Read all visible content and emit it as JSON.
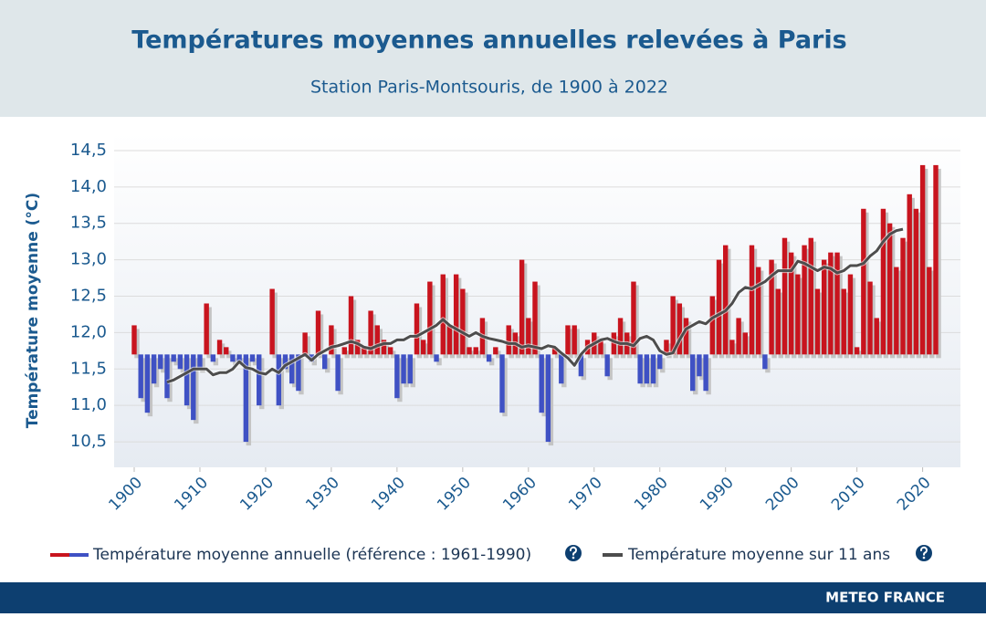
{
  "chart_data": {
    "type": "bar",
    "title": "Températures moyennes annuelles relevées à Paris",
    "subtitle": "Station Paris-Montsouris, de 1900 à 2022",
    "y_label": "Température moyenne (°C)",
    "source": "METEO FRANCE",
    "baseline": 11.7,
    "x": [
      1900,
      1901,
      1902,
      1903,
      1904,
      1905,
      1906,
      1907,
      1908,
      1909,
      1910,
      1911,
      1912,
      1913,
      1914,
      1915,
      1916,
      1917,
      1918,
      1919,
      1920,
      1921,
      1922,
      1923,
      1924,
      1925,
      1926,
      1927,
      1928,
      1929,
      1930,
      1931,
      1932,
      1933,
      1934,
      1935,
      1936,
      1937,
      1938,
      1939,
      1940,
      1941,
      1942,
      1943,
      1944,
      1945,
      1946,
      1947,
      1948,
      1949,
      1950,
      1951,
      1952,
      1953,
      1954,
      1955,
      1956,
      1957,
      1958,
      1959,
      1960,
      1961,
      1962,
      1963,
      1964,
      1965,
      1966,
      1967,
      1968,
      1969,
      1970,
      1971,
      1972,
      1973,
      1974,
      1975,
      1976,
      1977,
      1978,
      1979,
      1980,
      1981,
      1982,
      1983,
      1984,
      1985,
      1986,
      1987,
      1988,
      1989,
      1990,
      1991,
      1992,
      1993,
      1994,
      1995,
      1996,
      1997,
      1998,
      1999,
      2000,
      2001,
      2002,
      2003,
      2004,
      2005,
      2006,
      2007,
      2008,
      2009,
      2010,
      2011,
      2012,
      2013,
      2014,
      2015,
      2016,
      2017,
      2018,
      2019,
      2020,
      2021,
      2022
    ],
    "xlim": [
      1897,
      2026
    ],
    "xticks": [
      1900,
      1910,
      1920,
      1930,
      1940,
      1950,
      1960,
      1970,
      1980,
      1990,
      2000,
      2010,
      2020
    ],
    "ylim": [
      10.15,
      14.75
    ],
    "yticks": [
      {
        "value": 10.5,
        "label": "10,5"
      },
      {
        "value": 11,
        "label": "11,0"
      },
      {
        "value": 11.5,
        "label": "11,5"
      },
      {
        "value": 12,
        "label": "12,0"
      },
      {
        "value": 12.5,
        "label": "12,5"
      },
      {
        "value": 13,
        "label": "13,0"
      },
      {
        "value": 13.5,
        "label": "13,5"
      },
      {
        "value": 14,
        "label": "14,0"
      },
      {
        "value": 14.5,
        "label": "14,5"
      }
    ],
    "grid": true,
    "series": [
      {
        "name": "Température moyenne annuelle (référence : 1961-1990)",
        "type": "bar",
        "color": "#c8141e",
        "negative_color": "#3f51c4",
        "values": [
          12.1,
          11.1,
          10.9,
          11.3,
          11.5,
          11.1,
          11.6,
          11.5,
          11.0,
          10.8,
          11.5,
          12.4,
          11.6,
          11.9,
          11.8,
          11.6,
          11.6,
          10.5,
          11.6,
          11.0,
          11.7,
          12.6,
          11.0,
          11.5,
          11.3,
          11.2,
          12.0,
          11.6,
          12.3,
          11.5,
          12.1,
          11.2,
          11.8,
          12.5,
          11.9,
          11.8,
          12.3,
          12.1,
          11.9,
          11.8,
          11.1,
          11.3,
          11.3,
          12.4,
          11.9,
          12.7,
          11.6,
          12.8,
          12.1,
          12.8,
          12.6,
          11.8,
          11.8,
          12.2,
          11.6,
          11.8,
          10.9,
          12.1,
          12.0,
          13.0,
          12.2,
          12.7,
          10.9,
          10.5,
          11.8,
          11.3,
          12.1,
          12.1,
          11.4,
          11.9,
          12.0,
          11.9,
          11.4,
          12.0,
          12.2,
          12.0,
          12.7,
          11.3,
          11.3,
          11.3,
          11.5,
          11.9,
          12.5,
          12.4,
          12.2,
          11.2,
          11.4,
          11.2,
          12.5,
          13.0,
          13.2,
          11.9,
          12.2,
          12.0,
          13.2,
          12.9,
          11.5,
          13.0,
          12.6,
          13.3,
          13.1,
          12.8,
          13.2,
          13.3,
          12.6,
          13.0,
          13.1,
          13.1,
          12.6,
          12.8,
          11.8,
          13.7,
          12.7,
          12.2,
          13.7,
          13.5,
          12.9,
          13.3,
          13.9,
          13.7,
          14.3,
          12.9,
          14.3
        ]
      },
      {
        "name": "Température moyenne sur 11 ans",
        "type": "line",
        "color": "#4d4d4d",
        "values": [
          null,
          null,
          null,
          null,
          null,
          11.32,
          11.35,
          11.4,
          11.45,
          11.5,
          11.5,
          11.5,
          11.42,
          11.45,
          11.45,
          11.5,
          11.6,
          11.52,
          11.5,
          11.45,
          11.43,
          11.5,
          11.45,
          11.55,
          11.6,
          11.65,
          11.7,
          11.62,
          11.7,
          11.75,
          11.8,
          11.82,
          11.85,
          11.88,
          11.85,
          11.8,
          11.78,
          11.82,
          11.85,
          11.85,
          11.9,
          11.9,
          11.95,
          11.95,
          12.0,
          12.05,
          12.1,
          12.18,
          12.1,
          12.05,
          12.0,
          11.95,
          12.0,
          11.95,
          11.92,
          11.9,
          11.88,
          11.85,
          11.85,
          11.8,
          11.82,
          11.8,
          11.78,
          11.82,
          11.8,
          11.72,
          11.65,
          11.55,
          11.7,
          11.8,
          11.85,
          11.9,
          11.92,
          11.88,
          11.85,
          11.85,
          11.82,
          11.92,
          11.95,
          11.9,
          11.75,
          11.7,
          11.72,
          11.9,
          12.05,
          12.1,
          12.15,
          12.12,
          12.2,
          12.25,
          12.3,
          12.4,
          12.55,
          12.62,
          12.6,
          12.65,
          12.7,
          12.78,
          12.85,
          12.85,
          12.85,
          12.98,
          12.95,
          12.9,
          12.85,
          12.9,
          12.88,
          12.82,
          12.85,
          12.92,
          12.92,
          12.95,
          13.05,
          13.12,
          13.25,
          13.35,
          13.4,
          13.42,
          null,
          null,
          null,
          null,
          null
        ]
      }
    ]
  }
}
